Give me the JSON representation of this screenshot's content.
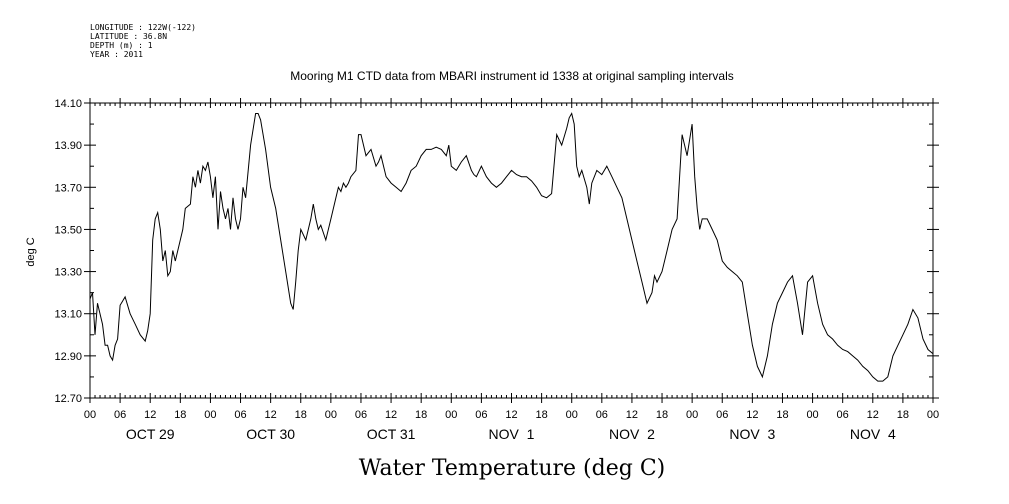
{
  "header": {
    "meta_lines": [
      "LONGITUDE : 122W(-122)",
      "LATITUDE : 36.8N",
      "DEPTH (m) : 1",
      "YEAR : 2011"
    ]
  },
  "chart_data": {
    "type": "line",
    "title": "Mooring M1 CTD data from MBARI instrument id 1338 at original sampling intervals",
    "xlabel": "Water Temperature (deg C)",
    "ylabel": "deg C",
    "ylim": [
      12.7,
      14.1
    ],
    "yticks": [
      "12.70",
      "12.90",
      "13.10",
      "13.30",
      "13.50",
      "13.70",
      "13.90",
      "14.10"
    ],
    "xlim_hours": [
      0,
      168
    ],
    "hour_tick_labels": [
      "00",
      "06",
      "12",
      "18",
      "00",
      "06",
      "12",
      "18",
      "00",
      "06",
      "12",
      "18",
      "00",
      "06",
      "12",
      "18",
      "00",
      "06",
      "12",
      "18",
      "00",
      "06",
      "12",
      "18",
      "00",
      "06",
      "12",
      "18",
      "00"
    ],
    "day_labels": [
      "OCT 29",
      "OCT 30",
      "OCT 31",
      "NOV  1",
      "NOV  2",
      "NOV  3",
      "NOV  4"
    ],
    "grid": false,
    "series": [
      {
        "color": "#000000",
        "x": [
          0,
          0.5,
          1,
          1.5,
          2,
          2.5,
          3,
          3.5,
          4,
          4.5,
          5,
          5.5,
          6,
          6.5,
          7,
          8,
          9,
          10,
          11,
          11.5,
          12,
          12.5,
          13,
          13.5,
          14,
          14.5,
          15,
          15.5,
          16,
          16.5,
          17,
          18,
          18.5,
          19,
          20,
          20.5,
          21,
          21.5,
          22,
          22.5,
          23,
          23.5,
          24,
          24.5,
          25,
          25.5,
          26,
          26.5,
          27,
          27.5,
          28,
          28.5,
          29,
          29.5,
          30,
          30.5,
          31,
          32,
          33,
          33.5,
          34,
          35,
          36,
          37,
          38,
          39,
          40,
          40.5,
          41,
          41.5,
          42,
          43,
          44,
          44.5,
          45,
          45.5,
          46,
          47,
          48,
          49,
          49.5,
          50,
          50.5,
          51,
          51.5,
          52,
          53,
          53.5,
          54,
          54.5,
          55,
          56,
          57,
          57.5,
          58,
          59,
          60,
          61,
          62,
          63,
          64,
          65,
          66,
          67,
          68,
          69,
          70,
          71,
          71.5,
          72,
          73,
          74,
          75,
          76,
          76.5,
          77,
          78,
          79,
          80,
          81,
          82,
          83,
          84,
          85,
          86,
          87,
          88,
          89,
          90,
          91,
          92,
          93,
          94,
          95,
          95.5,
          96,
          96.5,
          97,
          97.5,
          98,
          99,
          99.5,
          100,
          101,
          102,
          103,
          104,
          105,
          106,
          107,
          108,
          109,
          110,
          111,
          112,
          112.5,
          113,
          114,
          115,
          116,
          117,
          118,
          119,
          120,
          120.5,
          121,
          121.5,
          122,
          123,
          124,
          125,
          126,
          127,
          128,
          129,
          130,
          131,
          132,
          133,
          134,
          135,
          136,
          137,
          138,
          139,
          140,
          141,
          142,
          143,
          144,
          145,
          146,
          147,
          148,
          149,
          150,
          151,
          152,
          153,
          154,
          155,
          156,
          157,
          158,
          159,
          160,
          161,
          162,
          163,
          164,
          165,
          166,
          167,
          168
        ],
        "y": [
          13.17,
          13.2,
          13.0,
          13.15,
          13.1,
          13.05,
          12.95,
          12.95,
          12.9,
          12.88,
          12.95,
          12.98,
          13.14,
          13.16,
          13.18,
          13.1,
          13.05,
          13.0,
          12.97,
          13.02,
          13.1,
          13.45,
          13.55,
          13.58,
          13.5,
          13.35,
          13.4,
          13.28,
          13.3,
          13.4,
          13.35,
          13.45,
          13.5,
          13.6,
          13.62,
          13.75,
          13.7,
          13.78,
          13.72,
          13.8,
          13.78,
          13.82,
          13.75,
          13.65,
          13.75,
          13.5,
          13.68,
          13.6,
          13.55,
          13.6,
          13.5,
          13.65,
          13.55,
          13.5,
          13.55,
          13.7,
          13.65,
          13.9,
          14.05,
          14.05,
          14.02,
          13.88,
          13.7,
          13.6,
          13.45,
          13.3,
          13.15,
          13.12,
          13.25,
          13.4,
          13.5,
          13.45,
          13.55,
          13.62,
          13.55,
          13.5,
          13.52,
          13.45,
          13.55,
          13.65,
          13.7,
          13.68,
          13.72,
          13.7,
          13.72,
          13.75,
          13.78,
          13.95,
          13.95,
          13.9,
          13.85,
          13.88,
          13.8,
          13.82,
          13.85,
          13.75,
          13.72,
          13.7,
          13.68,
          13.72,
          13.78,
          13.8,
          13.85,
          13.88,
          13.88,
          13.89,
          13.88,
          13.85,
          13.9,
          13.8,
          13.78,
          13.82,
          13.85,
          13.78,
          13.76,
          13.75,
          13.8,
          13.75,
          13.72,
          13.7,
          13.72,
          13.75,
          13.78,
          13.76,
          13.75,
          13.75,
          13.73,
          13.7,
          13.66,
          13.65,
          13.67,
          13.95,
          13.9,
          13.98,
          14.03,
          14.05,
          14.0,
          13.8,
          13.75,
          13.78,
          13.7,
          13.62,
          13.72,
          13.78,
          13.76,
          13.8,
          13.75,
          13.7,
          13.65,
          13.55,
          13.45,
          13.35,
          13.25,
          13.15,
          13.2,
          13.28,
          13.25,
          13.3,
          13.4,
          13.5,
          13.55,
          13.95,
          13.85,
          14.0,
          13.75,
          13.6,
          13.5,
          13.55,
          13.55,
          13.5,
          13.45,
          13.35,
          13.32,
          13.3,
          13.28,
          13.25,
          13.1,
          12.95,
          12.85,
          12.8,
          12.9,
          13.05,
          13.15,
          13.2,
          13.25,
          13.28,
          13.15,
          13.0,
          13.25,
          13.28,
          13.15,
          13.05,
          13.0,
          12.98,
          12.95,
          12.93,
          12.92,
          12.9,
          12.88,
          12.85,
          12.83,
          12.8,
          12.78,
          12.78,
          12.8,
          12.9,
          12.95,
          13.0,
          13.05,
          13.12,
          13.08,
          12.98,
          12.93,
          12.91
        ]
      }
    ]
  }
}
